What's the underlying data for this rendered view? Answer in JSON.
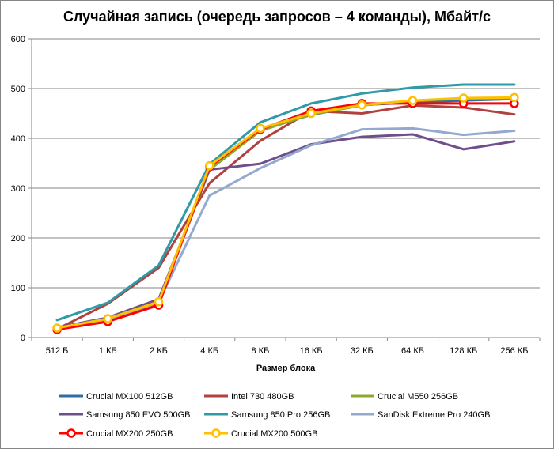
{
  "chart_data": {
    "type": "line",
    "title": "Случайная запись (очередь запросов – 4 команды), Мбайт/с",
    "xlabel": "Размер блока",
    "ylabel": "",
    "ylim": [
      0,
      600
    ],
    "yticks": [
      "0",
      "100",
      "200",
      "300",
      "400",
      "500",
      "600"
    ],
    "categories": [
      "512 Б",
      "1 КБ",
      "2 КБ",
      "4 КБ",
      "8 КБ",
      "16 КБ",
      "32 КБ",
      "64 КБ",
      "128 КБ",
      "256 КБ"
    ],
    "series": [
      {
        "name": "Crucial MX100 512GB",
        "color": "#2c6ea6",
        "marker": false,
        "values": [
          17,
          34,
          70,
          338,
          418,
          447,
          467,
          472,
          476,
          479
        ]
      },
      {
        "name": "Intel 730 480GB",
        "color": "#b0413e",
        "marker": false,
        "values": [
          17,
          68,
          140,
          310,
          395,
          455,
          450,
          466,
          462,
          448
        ]
      },
      {
        "name": "Crucial M550 256GB",
        "color": "#8caa33",
        "marker": false,
        "values": [
          18,
          36,
          71,
          337,
          415,
          448,
          466,
          475,
          480,
          481
        ]
      },
      {
        "name": "Samsung 850 EVO 500GB",
        "color": "#6e4f8c",
        "marker": false,
        "values": [
          20,
          40,
          77,
          337,
          349,
          388,
          403,
          408,
          378,
          394
        ]
      },
      {
        "name": "Samsung 850 Pro 256GB",
        "color": "#2f9aa8",
        "marker": false,
        "values": [
          35,
          70,
          145,
          348,
          432,
          470,
          490,
          502,
          508,
          508
        ]
      },
      {
        "name": "SanDisk Extreme Pro 240GB",
        "color": "#93a9cf",
        "marker": false,
        "values": [
          18,
          36,
          71,
          285,
          340,
          386,
          418,
          420,
          407,
          415
        ]
      },
      {
        "name": "Crucial MX200 250GB",
        "color": "#ff0000",
        "marker": true,
        "values": [
          16,
          32,
          65,
          343,
          418,
          455,
          470,
          470,
          470,
          470
        ]
      },
      {
        "name": "Crucial MX200 500GB",
        "color": "#ffc000",
        "marker": true,
        "values": [
          19,
          38,
          72,
          345,
          420,
          450,
          467,
          476,
          481,
          482
        ]
      }
    ]
  }
}
